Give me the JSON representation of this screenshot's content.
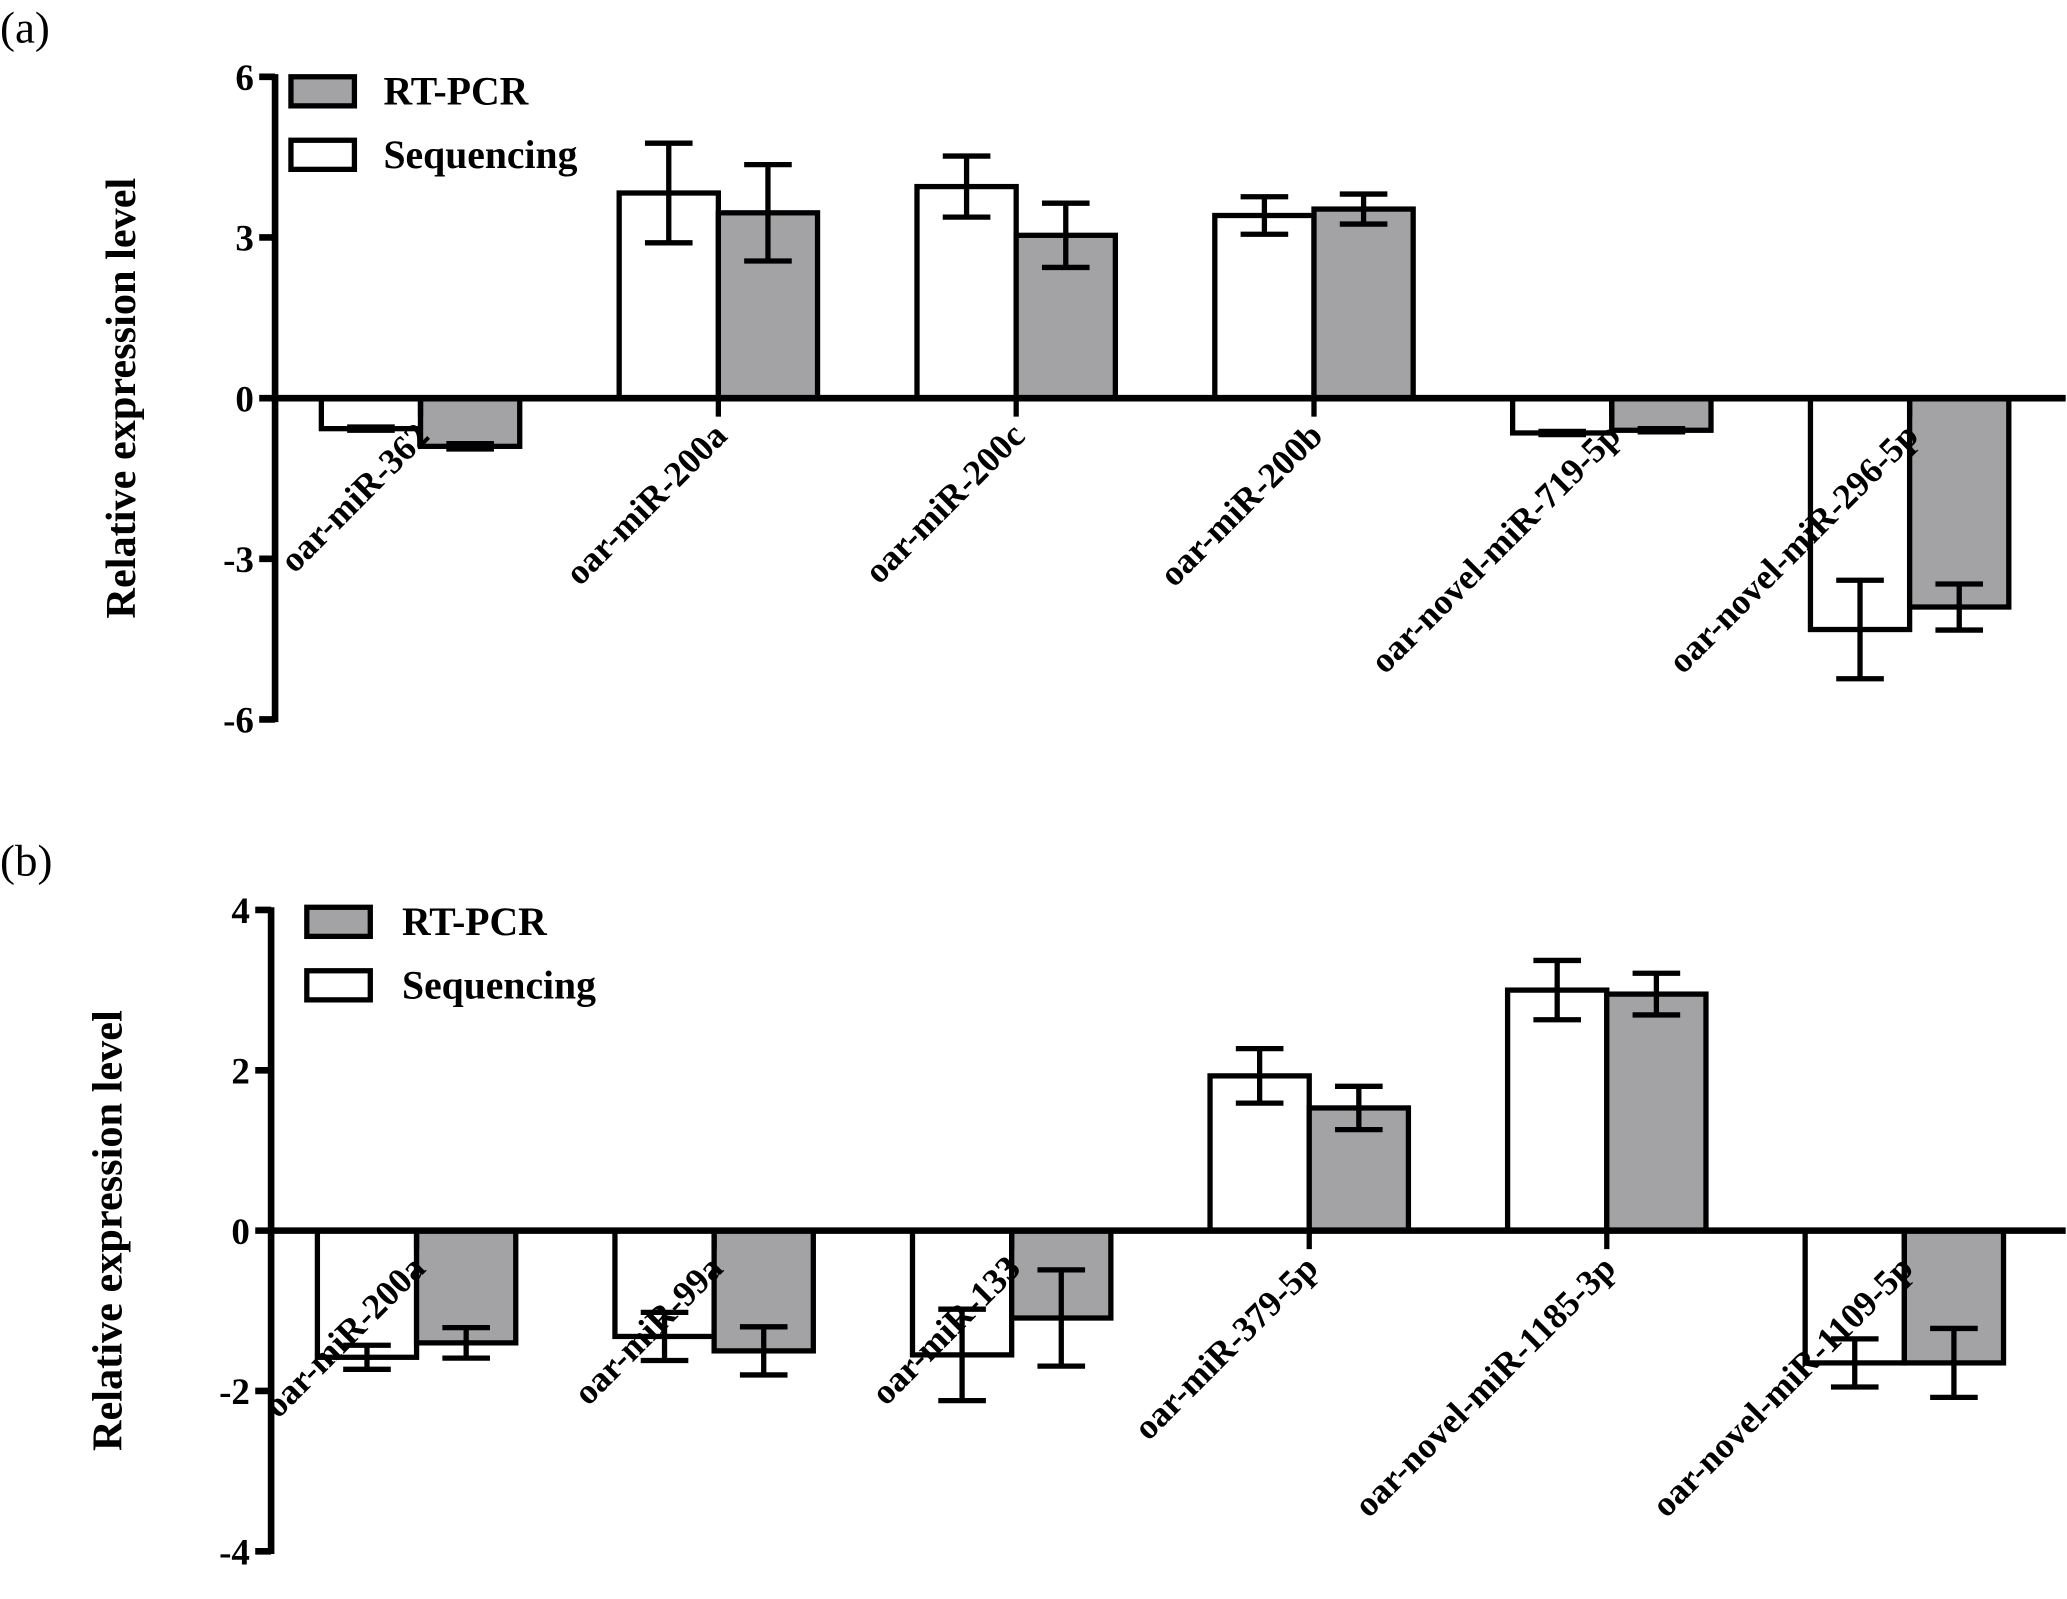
{
  "chart_data": [
    {
      "panel_label": "(a)",
      "type": "bar",
      "ylabel": "Relative expression level",
      "ylim": [
        -6,
        6
      ],
      "yticks": [
        6,
        3,
        0,
        -3,
        -6
      ],
      "grid": false,
      "legend_placement": "top-left",
      "categories": [
        "oar-miR-362",
        "oar-miR-200a",
        "oar-miR-200c",
        "oar-miR-200b",
        "oar-novel-miR-719-5p",
        "oar-novel-miR-296-5p"
      ],
      "series": [
        {
          "name": "Sequencing",
          "color": "#ffffff",
          "values": [
            -0.57,
            3.83,
            3.95,
            3.41,
            -0.65,
            -4.32
          ],
          "errors": [
            0.03,
            0.93,
            0.57,
            0.35,
            0.03,
            0.92
          ]
        },
        {
          "name": "RT-PCR",
          "color": "#a3a3a6",
          "values": [
            -0.9,
            3.46,
            3.04,
            3.53,
            -0.6,
            -3.9
          ],
          "errors": [
            0.05,
            0.9,
            0.6,
            0.28,
            0.03,
            0.43
          ]
        }
      ]
    },
    {
      "panel_label": "(b)",
      "type": "bar",
      "ylabel": "Relative expression level",
      "ylim": [
        -4,
        4
      ],
      "yticks": [
        4,
        2,
        0,
        -2,
        -4
      ],
      "grid": false,
      "legend_placement": "top-left",
      "categories": [
        "oar-miR-200a",
        "oar-miR-99a",
        "oar-miR-133",
        "oar-miR-379-5p",
        "oar-novel-miR-1185-3p",
        "oar-novel-miR-1109-5p"
      ],
      "series": [
        {
          "name": "Sequencing",
          "color": "#ffffff",
          "values": [
            -1.58,
            -1.32,
            -1.55,
            1.93,
            3.0,
            -1.65
          ],
          "errors": [
            0.15,
            0.3,
            0.57,
            0.34,
            0.37,
            0.3
          ]
        },
        {
          "name": "RT-PCR",
          "color": "#a3a3a6",
          "values": [
            -1.4,
            -1.5,
            -1.09,
            1.53,
            2.95,
            -1.65
          ],
          "errors": [
            0.19,
            0.3,
            0.6,
            0.27,
            0.26,
            0.43
          ]
        }
      ]
    }
  ]
}
